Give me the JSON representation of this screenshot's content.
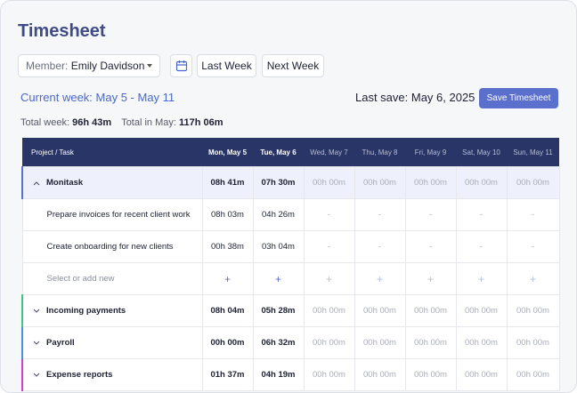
{
  "header": {
    "title": "Timesheet"
  },
  "controls": {
    "member_label": "Member:",
    "member_value": "Emily Davidson",
    "last_week": "Last Week",
    "next_week": "Next Week"
  },
  "summary": {
    "current_week": "Current week: May 5 - May 11",
    "last_save": "Last save: May 6, 2025",
    "save_button": "Save Timesheet"
  },
  "totals": {
    "week_label": "Total week:",
    "week_value": "96h 43m",
    "month_label": "Total in May:",
    "month_value": "117h 06m"
  },
  "table": {
    "columns": [
      "Project / Task",
      "Mon, May 5",
      "Tue, May 6",
      "Wed, May 7",
      "Thu, May 8",
      "Fri, May 9",
      "Sat, May 10",
      "Sun, May 11"
    ],
    "rows": [
      {
        "label": "Monitask",
        "cells": [
          "08h 41m",
          "07h 30m",
          "00h 00m",
          "00h 00m",
          "00h 00m",
          "00h 00m",
          "00h 00m"
        ]
      },
      {
        "label": "Prepare invoices for recent client work",
        "cells": [
          "08h 03m",
          "04h 26m",
          "-",
          "-",
          "-",
          "-",
          "-"
        ]
      },
      {
        "label": "Create onboarding for new clients",
        "cells": [
          "00h 38m",
          "03h 04m",
          "-",
          "-",
          "-",
          "-",
          "-"
        ]
      },
      {
        "label": "Select or add new",
        "cells": [
          "+",
          "+",
          "+",
          "+",
          "+",
          "+",
          "+"
        ]
      },
      {
        "label": "Incoming payments",
        "cells": [
          "08h 04m",
          "05h 28m",
          "00h 00m",
          "00h 00m",
          "00h 00m",
          "00h 00m",
          "00h 00m"
        ]
      },
      {
        "label": "Payroll",
        "cells": [
          "00h 00m",
          "06h 32m",
          "00h 00m",
          "00h 00m",
          "00h 00m",
          "00h 00m",
          "00h 00m"
        ]
      },
      {
        "label": "Expense reports",
        "cells": [
          "01h 37m",
          "04h 19m",
          "00h 00m",
          "00h 00m",
          "00h 00m",
          "00h 00m",
          "00h 00m"
        ]
      }
    ]
  }
}
